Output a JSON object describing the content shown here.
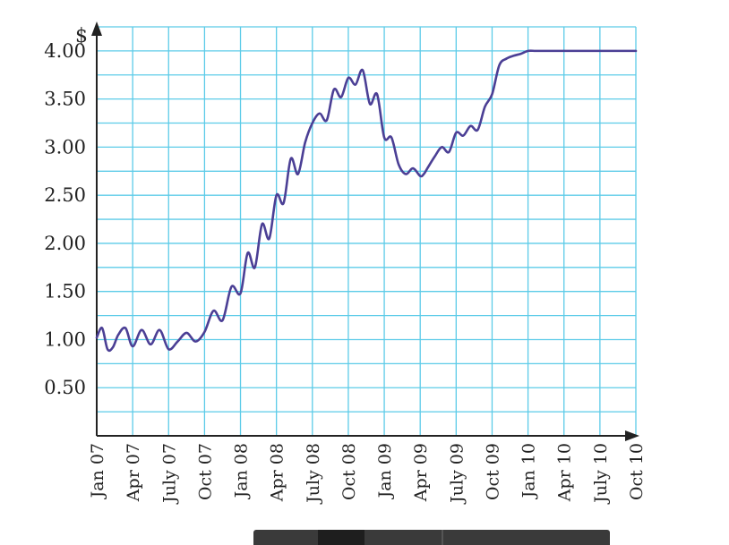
{
  "chart_data": {
    "type": "line",
    "title": "",
    "ylabel": "$",
    "xlabel": "",
    "categories": [
      "Jan 07",
      "Apr 07",
      "July 07",
      "Oct 07",
      "Jan 08",
      "Apr 08",
      "July 08",
      "Oct 08",
      "Jan 09",
      "Apr 09",
      "July 09",
      "Oct 09",
      "Jan 10",
      "Apr 10",
      "July 10",
      "Oct 10"
    ],
    "y_ticks": [
      "0.50",
      "1.00",
      "1.50",
      "2.00",
      "2.50",
      "3.00",
      "3.50",
      "4.00"
    ],
    "ylim": [
      0,
      4.25
    ],
    "grid": true,
    "colors": {
      "line": "#4b3f95",
      "grid": "#5ccbe8",
      "axis": "#222222"
    },
    "series": [
      {
        "x": [
          0,
          0.15,
          0.3,
          0.45,
          0.6,
          0.8,
          1.0,
          1.25,
          1.5,
          1.75,
          2.0,
          2.25,
          2.5,
          2.75,
          3.0,
          3.25,
          3.5,
          3.75,
          4.0,
          4.2,
          4.4,
          4.6,
          4.8,
          5.0,
          5.2,
          5.4,
          5.6,
          5.8,
          6.0,
          6.2,
          6.4,
          6.6,
          6.8,
          7.0,
          7.2,
          7.4,
          7.6,
          7.8,
          8.0,
          8.2,
          8.4,
          8.6,
          8.8,
          9.0,
          9.1,
          9.2,
          9.4,
          9.6,
          9.8,
          10.0,
          10.2,
          10.4,
          10.6,
          10.8,
          11.0,
          11.2,
          11.4,
          11.6,
          11.8,
          12.0,
          12.2,
          12.4,
          12.6,
          12.8,
          13.0,
          13.2,
          13.4,
          13.6,
          13.8,
          14.0,
          14.2,
          14.5,
          14.8,
          15.0
        ],
        "values": [
          1.02,
          1.12,
          0.9,
          0.92,
          1.05,
          1.12,
          0.93,
          1.1,
          0.95,
          1.1,
          0.9,
          0.98,
          1.07,
          0.98,
          1.08,
          1.3,
          1.2,
          1.55,
          1.48,
          1.9,
          1.75,
          2.2,
          2.05,
          2.5,
          2.42,
          2.88,
          2.72,
          3.05,
          3.25,
          3.35,
          3.28,
          3.6,
          3.52,
          3.72,
          3.65,
          3.8,
          3.45,
          3.55,
          3.1,
          3.1,
          2.82,
          2.72,
          2.78,
          2.7,
          2.72,
          2.78,
          2.9,
          3.0,
          2.95,
          3.15,
          3.12,
          3.22,
          3.18,
          3.42,
          3.55,
          3.85,
          3.92,
          3.95,
          3.97,
          4.0,
          4.0,
          4.0,
          4.0,
          4.0,
          4.0,
          4.0,
          4.0,
          4.0,
          4.0,
          4.0,
          4.0,
          4.0,
          4.0,
          4.0
        ]
      }
    ]
  }
}
